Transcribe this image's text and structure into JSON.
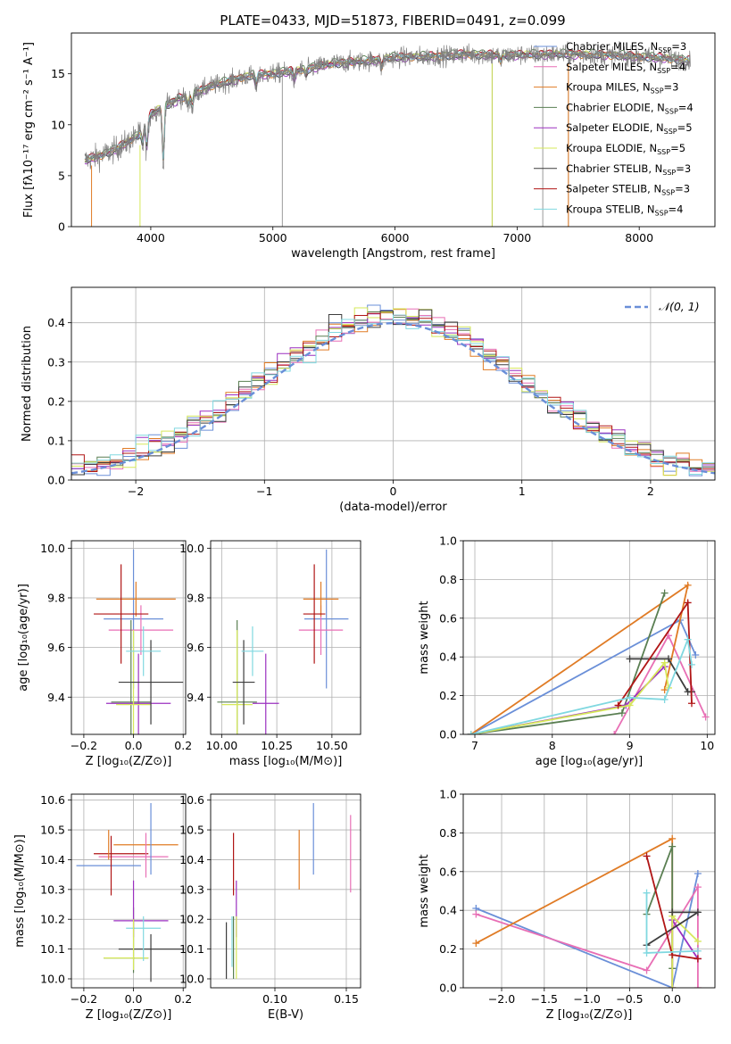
{
  "figure": {
    "title": "PLATE=0433, MJD=51873, FIBERID=0491, z=0.099"
  },
  "colors": {
    "data": "#808080",
    "Chabrier MILES": "#6a8fd8",
    "Salpeter MILES": "#e86fb5",
    "Kroupa MILES": "#e07b25",
    "Chabrier ELODIE": "#5a7f52",
    "Salpeter ELODIE": "#9b30c0",
    "Kroupa ELODIE": "#d6e85a",
    "Chabrier STELIB": "#3d3d3d",
    "Salpeter STELIB": "#b01515",
    "Kroupa STELIB": "#80d8e0",
    "normal": "#6a8fd8"
  },
  "models": [
    "Chabrier MILES",
    "Salpeter MILES",
    "Kroupa MILES",
    "Chabrier ELODIE",
    "Salpeter ELODIE",
    "Kroupa ELODIE",
    "Chabrier STELIB",
    "Salpeter STELIB",
    "Kroupa STELIB"
  ],
  "chart_data": [
    {
      "id": "spectrum",
      "type": "line",
      "xlabel": "wavelength [Angstrom, rest frame]",
      "ylabel": "Flux [fλ10⁻¹⁷ erg cm⁻² s⁻¹ A⁻¹]",
      "xlim": [
        3350,
        8620
      ],
      "ylim": [
        0,
        19
      ],
      "xticks": [
        4000,
        5000,
        6000,
        7000,
        8000
      ],
      "yticks": [
        0,
        5,
        10,
        15
      ],
      "grid": false,
      "legend": "right",
      "legend_entries": [
        {
          "model": "Chabrier MILES",
          "label": "Chabrier MILES, N",
          "sub": "SSP",
          "tail": "=3"
        },
        {
          "model": "Salpeter MILES",
          "label": "Salpeter MILES, N",
          "sub": "SSP",
          "tail": "=4"
        },
        {
          "model": "Kroupa MILES",
          "label": "Kroupa MILES, N",
          "sub": "SSP",
          "tail": "=3"
        },
        {
          "model": "Chabrier ELODIE",
          "label": "Chabrier ELODIE, N",
          "sub": "SSP",
          "tail": "=4"
        },
        {
          "model": "Salpeter ELODIE",
          "label": "Salpeter ELODIE, N",
          "sub": "SSP",
          "tail": "=5"
        },
        {
          "model": "Kroupa ELODIE",
          "label": "Kroupa ELODIE, N",
          "sub": "SSP",
          "tail": "=5"
        },
        {
          "model": "Chabrier STELIB",
          "label": "Chabrier STELIB, N",
          "sub": "SSP",
          "tail": "=3"
        },
        {
          "model": "Salpeter STELIB",
          "label": "Salpeter STELIB, N",
          "sub": "SSP",
          "tail": "=3"
        },
        {
          "model": "Kroupa STELIB",
          "label": "Kroupa STELIB, N",
          "sub": "SSP",
          "tail": "=4"
        }
      ],
      "continuum": [
        [
          3460,
          6.5
        ],
        [
          3600,
          7.0
        ],
        [
          3700,
          7.5
        ],
        [
          3800,
          8.2
        ],
        [
          3900,
          9.0
        ],
        [
          4000,
          11.0
        ],
        [
          4100,
          11.8
        ],
        [
          4300,
          12.8
        ],
        [
          4500,
          13.8
        ],
        [
          4800,
          14.8
        ],
        [
          5000,
          15.0
        ],
        [
          5200,
          15.3
        ],
        [
          5500,
          16.0
        ],
        [
          5800,
          16.3
        ],
        [
          6000,
          16.6
        ],
        [
          6300,
          16.7
        ],
        [
          6600,
          16.9
        ],
        [
          6900,
          16.8
        ],
        [
          7200,
          16.9
        ],
        [
          7500,
          16.9
        ],
        [
          7800,
          16.8
        ],
        [
          8100,
          16.6
        ],
        [
          8400,
          16.3
        ]
      ],
      "dips": [
        [
          3933,
          7.8
        ],
        [
          3968,
          7.3
        ],
        [
          4102,
          5.5
        ],
        [
          4227,
          12.8
        ],
        [
          4304,
          11.7
        ],
        [
          4340,
          11.5
        ],
        [
          4861,
          13.6
        ],
        [
          5175,
          14.2
        ],
        [
          5270,
          14.7
        ],
        [
          5890,
          15.5
        ],
        [
          6563,
          17.0
        ],
        [
          6867,
          16.1
        ]
      ],
      "spikes": [
        [
          5077,
          0
        ],
        [
          6797,
          0
        ],
        [
          7210,
          0
        ],
        [
          7420,
          0
        ]
      ]
    },
    {
      "id": "residuals",
      "type": "histogram",
      "xlabel": "(data-model)/error",
      "ylabel": "Normed distribution",
      "xlim": [
        -2.5,
        2.5
      ],
      "ylim": [
        0,
        0.49
      ],
      "xticks": [
        -2,
        -1,
        0,
        1,
        2
      ],
      "yticks": [
        0.0,
        0.1,
        0.2,
        0.3,
        0.4
      ],
      "grid": true,
      "bin_width": 0.1,
      "legend": {
        "label": "𝒩(0, 1)",
        "position": "top-right"
      }
    },
    {
      "id": "age-vs-Z",
      "type": "errorbar",
      "xlabel": "Z [log₁₀(Z/Z⊙)]",
      "ylabel": "age  [log₁₀(age/yr)]",
      "xlim": [
        -0.25,
        0.21
      ],
      "ylim": [
        9.25,
        10.03
      ],
      "xticks": [
        -0.2,
        0.0,
        0.2
      ],
      "yticks": [
        9.4,
        9.6,
        9.8,
        10.0
      ],
      "grid": true,
      "points": [
        {
          "model": "Chabrier MILES",
          "x": 0.0,
          "xerr": 0.12,
          "y": 9.715,
          "yerr": 0.28
        },
        {
          "model": "Salpeter MILES",
          "x": 0.03,
          "xerr": 0.13,
          "y": 9.67,
          "yerr": 0.1
        },
        {
          "model": "Kroupa MILES",
          "x": 0.01,
          "xerr": 0.16,
          "y": 9.795,
          "yerr": 0.07
        },
        {
          "model": "Chabrier ELODIE",
          "x": -0.01,
          "xerr": 0.08,
          "y": 9.38,
          "yerr": 0.33
        },
        {
          "model": "Salpeter ELODIE",
          "x": 0.02,
          "xerr": 0.13,
          "y": 9.375,
          "yerr": 0.2
        },
        {
          "model": "Kroupa ELODIE",
          "x": 0.0,
          "xerr": 0.07,
          "y": 9.37,
          "yerr": 0.3
        },
        {
          "model": "Chabrier STELIB",
          "x": 0.07,
          "xerr": 0.13,
          "y": 9.46,
          "yerr": 0.17
        },
        {
          "model": "Salpeter STELIB",
          "x": -0.05,
          "xerr": 0.11,
          "y": 9.735,
          "yerr": 0.2
        },
        {
          "model": "Kroupa STELIB",
          "x": 0.04,
          "xerr": 0.07,
          "y": 9.585,
          "yerr": 0.1
        }
      ]
    },
    {
      "id": "age-vs-mass",
      "type": "errorbar",
      "xlabel": "mass [log₁₀(M/M⊙)]",
      "ylabel": "",
      "xlim": [
        9.95,
        10.63
      ],
      "ylim": [
        9.25,
        10.03
      ],
      "xticks": [
        10.0,
        10.25,
        10.5
      ],
      "yticks": [
        9.4,
        9.6,
        9.8,
        10.0
      ],
      "grid": true,
      "points": [
        {
          "model": "Chabrier MILES",
          "x": 10.475,
          "xerr": 0.1,
          "y": 9.715,
          "yerr": 0.28
        },
        {
          "model": "Salpeter MILES",
          "x": 10.45,
          "xerr": 0.1,
          "y": 9.67,
          "yerr": 0.1
        },
        {
          "model": "Kroupa MILES",
          "x": 10.45,
          "xerr": 0.08,
          "y": 9.795,
          "yerr": 0.07
        },
        {
          "model": "Chabrier ELODIE",
          "x": 10.07,
          "xerr": 0.09,
          "y": 9.38,
          "yerr": 0.33
        },
        {
          "model": "Salpeter ELODIE",
          "x": 10.2,
          "xerr": 0.06,
          "y": 9.375,
          "yerr": 0.2
        },
        {
          "model": "Kroupa ELODIE",
          "x": 10.07,
          "xerr": 0.07,
          "y": 9.37,
          "yerr": 0.3
        },
        {
          "model": "Chabrier STELIB",
          "x": 10.1,
          "xerr": 0.05,
          "y": 9.46,
          "yerr": 0.17
        },
        {
          "model": "Salpeter STELIB",
          "x": 10.42,
          "xerr": 0.05,
          "y": 9.735,
          "yerr": 0.2
        },
        {
          "model": "Kroupa STELIB",
          "x": 10.14,
          "xerr": 0.05,
          "y": 9.585,
          "yerr": 0.1
        }
      ]
    },
    {
      "id": "weight-vs-age",
      "type": "line",
      "xlabel": "age  [log₁₀(age/yr)]",
      "ylabel": "mass weight",
      "xlim": [
        6.85,
        10.1
      ],
      "ylim": [
        0,
        1.0
      ],
      "xticks": [
        7,
        8,
        9,
        10
      ],
      "yticks": [
        0.0,
        0.2,
        0.4,
        0.6,
        0.8,
        1.0
      ],
      "grid": true,
      "series": [
        {
          "model": "Chabrier MILES",
          "x": [
            6.95,
            9.65,
            9.85
          ],
          "y": [
            0.0,
            0.59,
            0.41
          ]
        },
        {
          "model": "Salpeter MILES",
          "x": [
            8.8,
            9.5,
            9.98
          ],
          "y": [
            0.0,
            0.51,
            0.09
          ]
        },
        {
          "model": "Kroupa MILES",
          "x": [
            6.95,
            9.75,
            9.45
          ],
          "y": [
            0.0,
            0.77,
            0.23
          ]
        },
        {
          "model": "Chabrier ELODIE",
          "x": [
            6.95,
            8.9,
            9.45
          ],
          "y": [
            0.0,
            0.11,
            0.73
          ]
        },
        {
          "model": "Salpeter ELODIE",
          "x": [
            6.95,
            8.95,
            9.45
          ],
          "y": [
            0.0,
            0.15,
            0.35
          ]
        },
        {
          "model": "Kroupa ELODIE",
          "x": [
            6.95,
            9.0,
            9.45,
            9.5
          ],
          "y": [
            0.0,
            0.15,
            0.37,
            0.24
          ]
        },
        {
          "model": "Chabrier STELIB",
          "x": [
            9.0,
            9.5,
            9.75,
            9.8
          ],
          "y": [
            0.39,
            0.39,
            0.22,
            0.22
          ]
        },
        {
          "model": "Salpeter STELIB",
          "x": [
            8.85,
            9.75,
            9.8
          ],
          "y": [
            0.15,
            0.68,
            0.16
          ]
        },
        {
          "model": "Kroupa STELIB",
          "x": [
            6.95,
            9.0,
            9.45,
            9.75,
            9.8
          ],
          "y": [
            0.0,
            0.19,
            0.18,
            0.49,
            0.36
          ]
        }
      ]
    },
    {
      "id": "mass-vs-Z",
      "type": "errorbar",
      "xlabel": "Z [log₁₀(Z/Z⊙)]",
      "ylabel": "mass [log₁₀(M/M⊙)]",
      "xlim": [
        -0.25,
        0.21
      ],
      "ylim": [
        9.97,
        10.62
      ],
      "xticks": [
        -0.2,
        0.0,
        0.2
      ],
      "yticks": [
        10.0,
        10.1,
        10.2,
        10.3,
        10.4,
        10.5,
        10.6
      ],
      "grid": true,
      "points": [
        {
          "model": "Chabrier MILES",
          "x": -0.1,
          "xerr": 0.13,
          "y": 10.38,
          "yerr": 0.0
        },
        {
          "model": "Salpeter MILES",
          "x": 0.0,
          "xerr": 0.14,
          "y": 10.41,
          "yerr": 0.0
        },
        {
          "model": "Kroupa MILES",
          "x": 0.05,
          "xerr": 0.13,
          "y": 10.45,
          "yerr": 0.0
        },
        {
          "model": "Chabrier ELODIE",
          "x": -0.03,
          "xerr": 0.09,
          "y": 10.07,
          "yerr": 0.0
        },
        {
          "model": "Salpeter ELODIE",
          "x": 0.03,
          "xerr": 0.11,
          "y": 10.195,
          "yerr": 0.0
        },
        {
          "model": "Kroupa ELODIE",
          "x": -0.03,
          "xerr": 0.09,
          "y": 10.07,
          "yerr": 0.0
        },
        {
          "model": "Chabrier STELIB",
          "x": 0.07,
          "xerr": 0.13,
          "y": 10.1,
          "yerr": 0.0
        },
        {
          "model": "Salpeter STELIB",
          "x": -0.05,
          "xerr": 0.11,
          "y": 10.42,
          "yerr": 0.0
        },
        {
          "model": "Kroupa STELIB",
          "x": 0.04,
          "xerr": 0.07,
          "y": 10.17,
          "yerr": 0.0
        }
      ],
      "vbars": [
        {
          "model": "Chabrier MILES",
          "x": 0.07,
          "y0": 10.35,
          "y1": 10.59
        },
        {
          "model": "Salpeter MILES",
          "x": 0.05,
          "y0": 10.34,
          "y1": 10.49
        },
        {
          "model": "Kroupa MILES",
          "x": -0.1,
          "y0": 10.4,
          "y1": 10.5
        },
        {
          "model": "Chabrier ELODIE",
          "x": 0.0,
          "y0": 10.02,
          "y1": 10.24
        },
        {
          "model": "Salpeter ELODIE",
          "x": 0.0,
          "y0": 10.14,
          "y1": 10.33
        },
        {
          "model": "Kroupa ELODIE",
          "x": 0.0,
          "y0": 10.03,
          "y1": 10.2
        },
        {
          "model": "Chabrier STELIB",
          "x": 0.07,
          "y0": 9.99,
          "y1": 10.15
        },
        {
          "model": "Salpeter STELIB",
          "x": -0.09,
          "y0": 10.28,
          "y1": 10.48
        },
        {
          "model": "Kroupa STELIB",
          "x": 0.04,
          "y0": 10.06,
          "y1": 10.21
        }
      ]
    },
    {
      "id": "mass-vs-ebv",
      "type": "errorbar",
      "xlabel": "E(B-V)",
      "ylabel": "",
      "xlim": [
        0.055,
        0.16
      ],
      "ylim": [
        9.97,
        10.62
      ],
      "xticks": [
        0.1,
        0.15
      ],
      "yticks": [
        10.0,
        10.1,
        10.2,
        10.3,
        10.4,
        10.5,
        10.6
      ],
      "grid": true,
      "vbars": [
        {
          "model": "Chabrier MILES",
          "x": 0.127,
          "y0": 10.35,
          "y1": 10.59
        },
        {
          "model": "Salpeter MILES",
          "x": 0.153,
          "y0": 10.29,
          "y1": 10.55
        },
        {
          "model": "Kroupa MILES",
          "x": 0.117,
          "y0": 10.3,
          "y1": 10.5
        },
        {
          "model": "Chabrier ELODIE",
          "x": 0.071,
          "y0": 10.0,
          "y1": 10.21
        },
        {
          "model": "Salpeter ELODIE",
          "x": 0.073,
          "y0": 10.14,
          "y1": 10.33
        },
        {
          "model": "Kroupa ELODIE",
          "x": 0.073,
          "y0": 10.0,
          "y1": 10.21
        },
        {
          "model": "Chabrier STELIB",
          "x": 0.066,
          "y0": 10.0,
          "y1": 10.19
        },
        {
          "model": "Salpeter STELIB",
          "x": 0.071,
          "y0": 10.28,
          "y1": 10.49
        },
        {
          "model": "Kroupa STELIB",
          "x": 0.07,
          "y0": 10.04,
          "y1": 10.21
        }
      ]
    },
    {
      "id": "weight-vs-Z",
      "type": "line",
      "xlabel": "Z [log₁₀(Z/Z⊙)]",
      "ylabel": "mass weight",
      "xlim": [
        -2.45,
        0.5
      ],
      "ylim": [
        0,
        1.0
      ],
      "xticks": [
        -2.0,
        -1.5,
        -1.0,
        -0.5,
        0.0
      ],
      "yticks": [
        0.0,
        0.2,
        0.4,
        0.6,
        0.8,
        1.0
      ],
      "grid": true,
      "series": [
        {
          "model": "Chabrier MILES",
          "x": [
            -2.3,
            0.0,
            0.3
          ],
          "y": [
            0.41,
            0.0,
            0.59
          ]
        },
        {
          "model": "Salpeter MILES",
          "x": [
            -2.3,
            -0.3,
            0.3,
            0.3
          ],
          "y": [
            0.38,
            0.09,
            0.52,
            0.0
          ]
        },
        {
          "model": "Kroupa MILES",
          "x": [
            -2.3,
            0.0,
            0.0
          ],
          "y": [
            0.23,
            0.77,
            0.0
          ]
        },
        {
          "model": "Chabrier ELODIE",
          "x": [
            -0.3,
            0.0,
            0.0
          ],
          "y": [
            0.38,
            0.73,
            0.1
          ]
        },
        {
          "model": "Salpeter ELODIE",
          "x": [
            0.0,
            0.0,
            0.3
          ],
          "y": [
            0.0,
            0.35,
            0.15
          ]
        },
        {
          "model": "Kroupa ELODIE",
          "x": [
            0.0,
            0.0,
            0.3
          ],
          "y": [
            0.0,
            0.37,
            0.24
          ]
        },
        {
          "model": "Chabrier STELIB",
          "x": [
            -0.3,
            0.3,
            0.0
          ],
          "y": [
            0.22,
            0.39,
            0.39
          ]
        },
        {
          "model": "Salpeter STELIB",
          "x": [
            -0.3,
            0.0,
            0.3
          ],
          "y": [
            0.68,
            0.17,
            0.15
          ]
        },
        {
          "model": "Kroupa STELIB",
          "x": [
            -0.3,
            -0.3,
            0.3
          ],
          "y": [
            0.49,
            0.18,
            0.19
          ]
        }
      ]
    }
  ]
}
